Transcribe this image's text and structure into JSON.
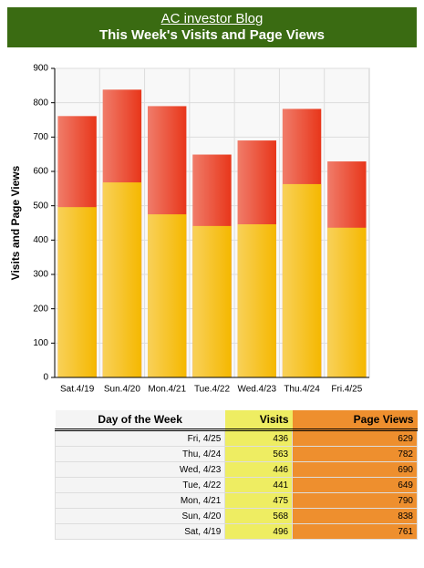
{
  "header": {
    "link": "AC investor Blog",
    "title": "This Week's Visits and Page Views"
  },
  "chart_data": {
    "type": "bar",
    "y_label": "Visits and Page Views",
    "categories": [
      "Sat.4/19",
      "Sun.4/20",
      "Mon.4/21",
      "Tue.4/22",
      "Wed.4/23",
      "Thu.4/24",
      "Fri.4/25"
    ],
    "series": [
      {
        "name": "Page Views",
        "color": "#e8361a",
        "values": [
          761,
          838,
          790,
          649,
          690,
          782,
          629
        ]
      },
      {
        "name": "Visits",
        "color": "#f5b800",
        "values": [
          496,
          568,
          475,
          441,
          446,
          563,
          436
        ]
      }
    ],
    "ylim": [
      0,
      900
    ],
    "yticks": [
      0,
      100,
      200,
      300,
      400,
      500,
      600,
      700,
      800,
      900
    ],
    "grid": true
  },
  "table": {
    "columns": [
      "Day of the Week",
      "Visits",
      "Page Views"
    ],
    "rows": [
      [
        "Fri, 4/25",
        "436",
        "629"
      ],
      [
        "Thu, 4/24",
        "563",
        "782"
      ],
      [
        "Wed, 4/23",
        "446",
        "690"
      ],
      [
        "Tue, 4/22",
        "441",
        "649"
      ],
      [
        "Mon, 4/21",
        "475",
        "790"
      ],
      [
        "Sun, 4/20",
        "568",
        "838"
      ],
      [
        "Sat, 4/19",
        "496",
        "761"
      ]
    ]
  }
}
